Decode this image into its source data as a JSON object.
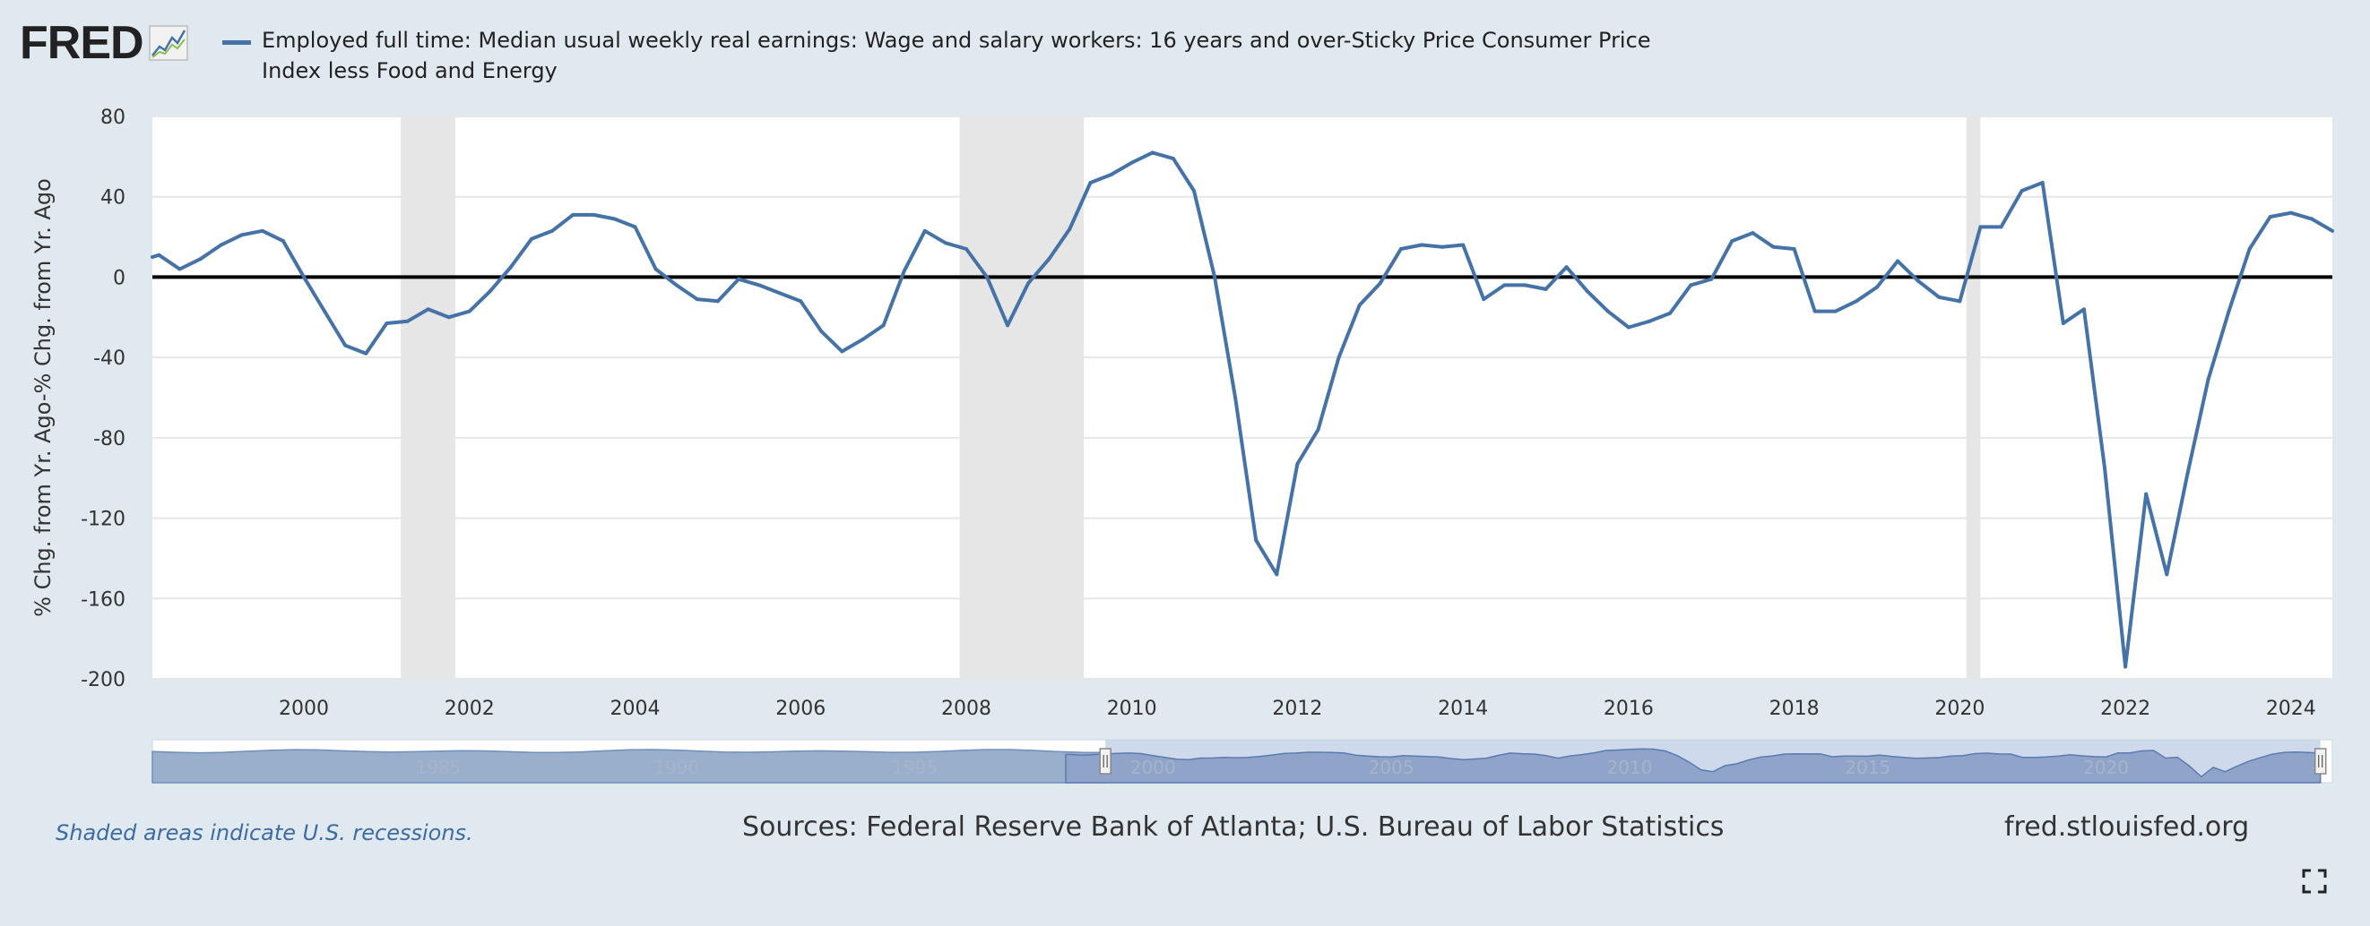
{
  "logo": {
    "text": "FRED",
    "icon": "line-chart-icon"
  },
  "legend": {
    "label": "Employed full time: Median usual weekly real earnings: Wage and salary workers: 16 years and over-Sticky Price Consumer Price Index less Food and Energy",
    "color": "#4572a7"
  },
  "footer": {
    "recession_note": "Shaded areas indicate U.S. recessions.",
    "sources": "Sources: Federal Reserve Bank of Atlanta; U.S. Bureau of Labor Statistics",
    "site": "fred.stlouisfed.org"
  },
  "controls": {
    "fullscreen_icon": "fullscreen-icon"
  },
  "navigator": {
    "tick_labels": [
      "1985",
      "1990",
      "1995",
      "2000",
      "2005",
      "2010",
      "2015",
      "2020"
    ],
    "range_start": 1999.0,
    "range_end": 2024.5,
    "full_start": 1979.0,
    "full_end": 2024.75
  },
  "chart_data": {
    "type": "line",
    "title": "",
    "xlabel": "",
    "ylabel": "% Chg. from Yr. Ago-% Chg. from Yr. Ago",
    "ylim": [
      -200,
      80
    ],
    "yticks": [
      80,
      40,
      0,
      -40,
      -80,
      -120,
      -160,
      -200
    ],
    "xlim": [
      1998.17,
      2024.5
    ],
    "xticks": [
      "2000",
      "2002",
      "2004",
      "2006",
      "2008",
      "2010",
      "2012",
      "2014",
      "2016",
      "2018",
      "2020",
      "2022",
      "2024"
    ],
    "grid": true,
    "legend_position": "top",
    "colors": {
      "line": "#4572a7",
      "recession": "#e6e6e6",
      "zero_line": "#000000"
    },
    "recessions": [
      [
        2001.17,
        2001.83
      ],
      [
        2007.92,
        2009.42
      ],
      [
        2020.08,
        2020.25
      ]
    ],
    "series": [
      {
        "name": "Employed full time: Median usual weekly real earnings: Wage and salary workers: 16 years and over-Sticky Price Consumer Price Index less Food and Energy",
        "x": [
          1998.17,
          1998.25,
          1998.5,
          1998.75,
          1999.0,
          1999.25,
          1999.5,
          1999.75,
          2000.0,
          2000.25,
          2000.5,
          2000.75,
          2001.0,
          2001.25,
          2001.5,
          2001.75,
          2002.0,
          2002.25,
          2002.5,
          2002.75,
          2003.0,
          2003.25,
          2003.5,
          2003.75,
          2004.0,
          2004.25,
          2004.5,
          2004.75,
          2005.0,
          2005.25,
          2005.5,
          2005.75,
          2006.0,
          2006.25,
          2006.5,
          2006.75,
          2007.0,
          2007.25,
          2007.5,
          2007.75,
          2008.0,
          2008.25,
          2008.5,
          2008.75,
          2009.0,
          2009.25,
          2009.5,
          2009.75,
          2010.0,
          2010.25,
          2010.5,
          2010.75,
          2011.0,
          2011.25,
          2011.5,
          2011.75,
          2012.0,
          2012.25,
          2012.5,
          2012.75,
          2013.0,
          2013.25,
          2013.5,
          2013.75,
          2014.0,
          2014.25,
          2014.5,
          2014.75,
          2015.0,
          2015.25,
          2015.5,
          2015.75,
          2016.0,
          2016.25,
          2016.5,
          2016.75,
          2017.0,
          2017.25,
          2017.5,
          2017.75,
          2018.0,
          2018.25,
          2018.5,
          2018.75,
          2019.0,
          2019.25,
          2019.5,
          2019.75,
          2020.0,
          2020.25,
          2020.5,
          2020.75,
          2021.0,
          2021.25,
          2021.5,
          2021.75,
          2022.0,
          2022.25,
          2022.5,
          2022.75,
          2023.0,
          2023.25,
          2023.5,
          2023.75,
          2024.0,
          2024.25,
          2024.5
        ],
        "values": [
          10,
          11,
          4,
          9,
          16,
          21,
          23,
          18,
          0,
          -17,
          -34,
          -38,
          -23,
          -22,
          -16,
          -20,
          -17,
          -7,
          5,
          19,
          23,
          31,
          31,
          29,
          25,
          4,
          -4,
          -11,
          -12,
          -1,
          -4,
          -8,
          -12,
          -27,
          -37,
          -31,
          -24,
          3,
          23,
          17,
          14,
          0,
          -24,
          -3,
          9,
          24,
          47,
          51,
          57,
          62,
          59,
          43,
          0,
          -60,
          -131,
          -148,
          -93,
          -76,
          -40,
          -14,
          -3,
          14,
          16,
          15,
          16,
          -11,
          -4,
          -4,
          -6,
          5,
          -7,
          -17,
          -25,
          -22,
          -18,
          -4,
          -1,
          18,
          22,
          15,
          14,
          -17,
          -17,
          -12,
          -5,
          8,
          -2,
          -10,
          -12,
          25,
          25,
          43,
          47,
          -23,
          -16,
          -95,
          -194,
          -108,
          -148,
          -98,
          -51,
          -17,
          14,
          30,
          32,
          29,
          23
        ]
      }
    ]
  }
}
